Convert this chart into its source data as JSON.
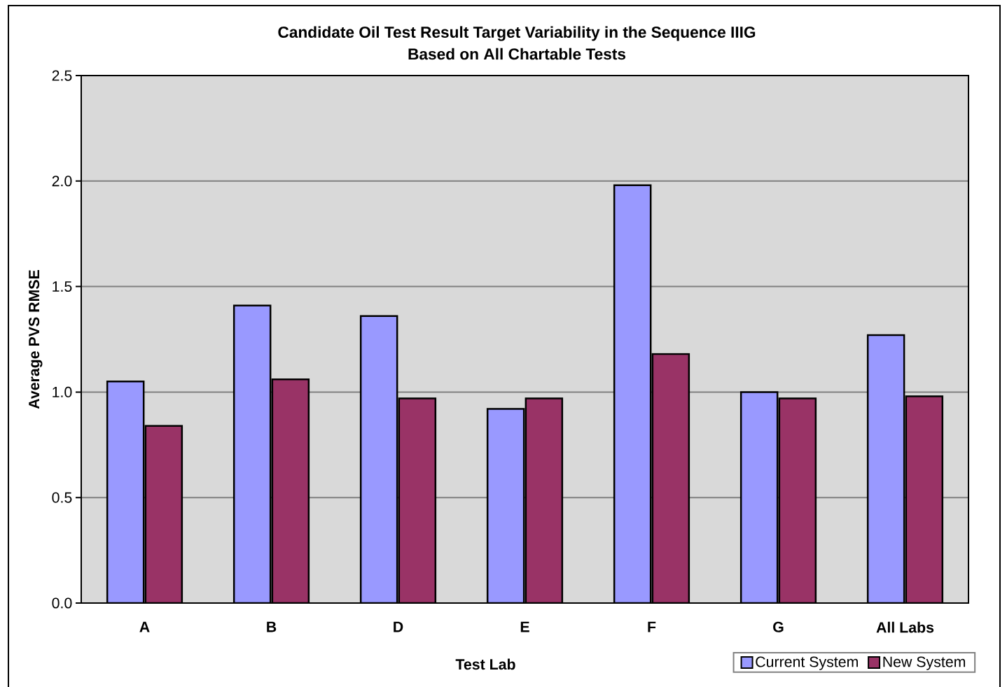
{
  "chart_data": {
    "type": "bar",
    "title": "Candidate Oil Test Result Target Variability in the Sequence IIIG",
    "subtitle": "Based on All Chartable Tests",
    "xlabel": "Test Lab",
    "ylabel": "Average PVS RMSE",
    "categories": [
      "A",
      "B",
      "D",
      "E",
      "F",
      "G",
      "All Labs"
    ],
    "series": [
      {
        "name": "Current System",
        "color": "#9999ff",
        "values": [
          1.05,
          1.41,
          1.36,
          0.92,
          1.98,
          1.0,
          1.27
        ]
      },
      {
        "name": "New System",
        "color": "#993366",
        "values": [
          0.84,
          1.06,
          0.97,
          0.97,
          1.18,
          0.97,
          0.98
        ]
      }
    ],
    "ylim": [
      0,
      2.5
    ],
    "yticks": [
      {
        "value": 0,
        "label": "0.0"
      },
      0.5,
      {
        "value": 1,
        "label": "1.0"
      },
      1.5,
      {
        "value": 2,
        "label": "2.0"
      },
      2.5
    ],
    "grid": "y",
    "legend": "bottom right"
  }
}
